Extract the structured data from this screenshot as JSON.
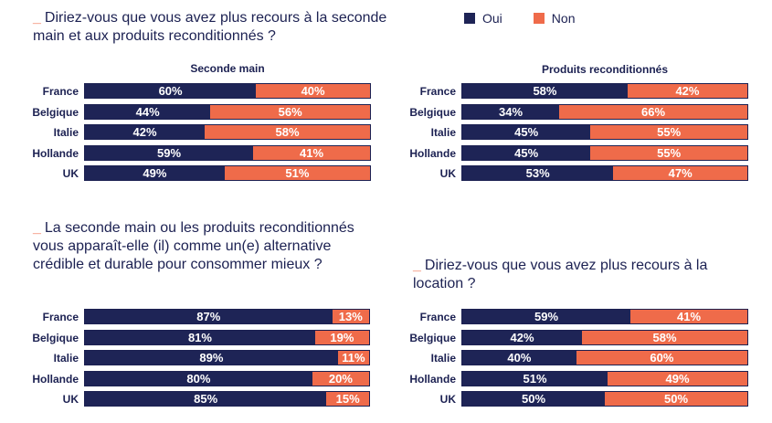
{
  "legend": {
    "oui": {
      "label": "Oui",
      "color": "#1e2456"
    },
    "non": {
      "label": "Non",
      "color": "#ef6b4a"
    }
  },
  "chart_data": [
    {
      "type": "bar",
      "title": "Diriez-vous que vous avez plus recours à la seconde main et aux produits reconditionnés ?",
      "subtitle": "Seconde main",
      "categories": [
        "France",
        "Belgique",
        "Italie",
        "Hollande",
        "UK"
      ],
      "series": [
        {
          "name": "Oui",
          "values": [
            60,
            44,
            42,
            59,
            49
          ]
        },
        {
          "name": "Non",
          "values": [
            40,
            56,
            58,
            41,
            51
          ]
        }
      ]
    },
    {
      "type": "bar",
      "title": "",
      "subtitle": "Produits reconditionnés",
      "categories": [
        "France",
        "Belgique",
        "Italie",
        "Hollande",
        "UK"
      ],
      "series": [
        {
          "name": "Oui",
          "values": [
            58,
            34,
            45,
            45,
            53
          ]
        },
        {
          "name": "Non",
          "values": [
            42,
            66,
            55,
            55,
            47
          ]
        }
      ]
    },
    {
      "type": "bar",
      "title": "La seconde main ou les produits reconditionnés vous apparaît-elle (il) comme un(e) alternative crédible et durable pour consommer mieux ?",
      "subtitle": "",
      "categories": [
        "France",
        "Belgique",
        "Italie",
        "Hollande",
        "UK"
      ],
      "series": [
        {
          "name": "Oui",
          "values": [
            87,
            81,
            89,
            80,
            85
          ]
        },
        {
          "name": "Non",
          "values": [
            13,
            19,
            11,
            20,
            15
          ]
        }
      ]
    },
    {
      "type": "bar",
      "title": "Diriez-vous que vous avez plus recours à la location ?",
      "subtitle": "",
      "categories": [
        "France",
        "Belgique",
        "Italie",
        "Hollande",
        "UK"
      ],
      "series": [
        {
          "name": "Oui",
          "values": [
            59,
            42,
            40,
            51,
            50
          ]
        },
        {
          "name": "Non",
          "values": [
            41,
            58,
            60,
            49,
            50
          ]
        }
      ]
    }
  ]
}
